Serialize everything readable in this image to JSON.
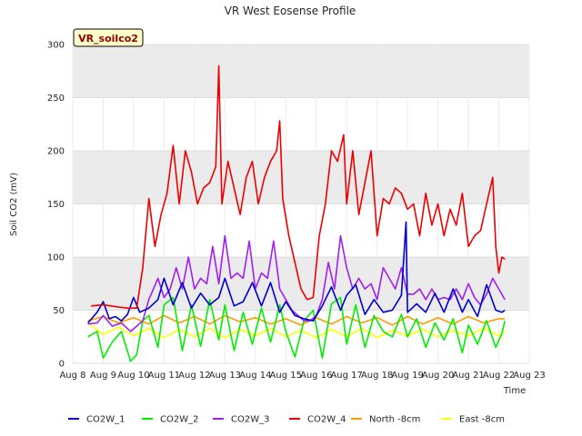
{
  "chart_data": {
    "type": "line",
    "title": "VR West Eosense Profile",
    "xlabel": "Time",
    "ylabel": "Soil CO2 (mV)",
    "site_label": "VR_soilco2",
    "x_tick_labels": [
      "Aug 8",
      "Aug 9",
      "Aug 10",
      "Aug 11",
      "Aug 12",
      "Aug 13",
      "Aug 14",
      "Aug 15",
      "Aug 16",
      "Aug 17",
      "Aug 18",
      "Aug 19",
      "Aug 20",
      "Aug 21",
      "Aug 22",
      "Aug 23"
    ],
    "xlim": [
      8,
      23
    ],
    "ylim": [
      0,
      300
    ],
    "y_ticks": [
      0,
      50,
      100,
      150,
      200,
      250,
      300
    ],
    "grid": true,
    "band_fill": "#ebebeb",
    "legend_position": "bottom",
    "x_unit": "day of August",
    "series": [
      {
        "name": "CO2W_1",
        "color": "#0000cc",
        "x": [
          8.5,
          8.8,
          9.0,
          9.2,
          9.4,
          9.6,
          9.8,
          10.0,
          10.2,
          10.5,
          10.8,
          11.0,
          11.3,
          11.6,
          11.9,
          12.2,
          12.5,
          12.8,
          13.0,
          13.3,
          13.6,
          13.9,
          14.2,
          14.5,
          14.8,
          15.0,
          15.3,
          15.6,
          15.9,
          16.2,
          16.5,
          16.8,
          17.0,
          17.3,
          17.6,
          17.9,
          18.2,
          18.5,
          18.8,
          18.95,
          19.0,
          19.3,
          19.6,
          19.9,
          20.2,
          20.5,
          20.8,
          21.0,
          21.3,
          21.6,
          21.9,
          22.1,
          22.2
        ],
        "y": [
          38,
          48,
          58,
          42,
          44,
          40,
          46,
          62,
          48,
          52,
          60,
          80,
          55,
          76,
          52,
          66,
          55,
          62,
          80,
          54,
          58,
          76,
          54,
          76,
          48,
          58,
          45,
          42,
          40,
          54,
          72,
          50,
          64,
          74,
          46,
          60,
          48,
          50,
          64,
          133,
          48,
          56,
          48,
          66,
          48,
          70,
          48,
          60,
          44,
          74,
          50,
          48,
          50
        ]
      },
      {
        "name": "CO2W_2",
        "color": "#00ee00",
        "x": [
          8.5,
          8.8,
          9.0,
          9.3,
          9.6,
          9.9,
          10.1,
          10.3,
          10.5,
          10.8,
          11.0,
          11.3,
          11.6,
          11.9,
          12.2,
          12.5,
          12.8,
          13.0,
          13.3,
          13.6,
          13.9,
          14.2,
          14.5,
          14.8,
          15.0,
          15.3,
          15.6,
          15.9,
          16.2,
          16.5,
          16.8,
          17.0,
          17.3,
          17.6,
          17.9,
          18.2,
          18.5,
          18.8,
          19.0,
          19.3,
          19.6,
          19.9,
          20.2,
          20.5,
          20.8,
          21.0,
          21.3,
          21.6,
          21.9,
          22.1,
          22.2
        ],
        "y": [
          25,
          30,
          5,
          20,
          30,
          2,
          8,
          40,
          45,
          15,
          55,
          62,
          12,
          55,
          16,
          60,
          22,
          55,
          12,
          48,
          18,
          52,
          20,
          55,
          30,
          6,
          40,
          50,
          5,
          56,
          62,
          18,
          55,
          15,
          45,
          30,
          25,
          46,
          25,
          42,
          15,
          38,
          22,
          42,
          10,
          36,
          18,
          40,
          15,
          28,
          40
        ]
      },
      {
        "name": "CO2W_3",
        "color": "#a020f0",
        "x": [
          8.5,
          8.8,
          9.0,
          9.3,
          9.6,
          9.9,
          10.1,
          10.3,
          10.5,
          10.8,
          11.0,
          11.2,
          11.4,
          11.6,
          11.8,
          12.0,
          12.2,
          12.4,
          12.6,
          12.8,
          13.0,
          13.2,
          13.4,
          13.6,
          13.8,
          14.0,
          14.2,
          14.4,
          14.6,
          14.8,
          15.0,
          15.2,
          15.4,
          15.6,
          15.8,
          16.0,
          16.2,
          16.4,
          16.6,
          16.8,
          17.0,
          17.2,
          17.4,
          17.6,
          17.8,
          18.0,
          18.2,
          18.4,
          18.6,
          18.8,
          19.0,
          19.2,
          19.4,
          19.6,
          19.8,
          20.0,
          20.2,
          20.4,
          20.6,
          20.8,
          21.0,
          21.2,
          21.4,
          21.6,
          21.8,
          22.0,
          22.2
        ],
        "y": [
          37,
          38,
          45,
          35,
          38,
          30,
          35,
          40,
          60,
          80,
          62,
          70,
          90,
          70,
          100,
          70,
          80,
          75,
          110,
          75,
          120,
          80,
          85,
          80,
          115,
          70,
          85,
          80,
          115,
          70,
          60,
          50,
          45,
          40,
          40,
          45,
          60,
          95,
          70,
          120,
          90,
          70,
          80,
          70,
          75,
          60,
          90,
          80,
          70,
          90,
          65,
          65,
          70,
          60,
          70,
          60,
          62,
          60,
          70,
          60,
          75,
          62,
          55,
          65,
          80,
          70,
          60
        ]
      },
      {
        "name": "CO2W_4",
        "color": "#ee0000",
        "x": [
          8.6,
          9.0,
          9.5,
          9.8,
          10.1,
          10.3,
          10.5,
          10.7,
          10.9,
          11.1,
          11.3,
          11.5,
          11.7,
          11.9,
          12.1,
          12.3,
          12.5,
          12.7,
          12.8,
          12.9,
          13.1,
          13.3,
          13.5,
          13.7,
          13.9,
          14.1,
          14.3,
          14.5,
          14.7,
          14.8,
          14.9,
          15.1,
          15.3,
          15.5,
          15.7,
          15.9,
          16.1,
          16.3,
          16.5,
          16.7,
          16.9,
          17.0,
          17.2,
          17.4,
          17.6,
          17.8,
          18.0,
          18.2,
          18.4,
          18.6,
          18.8,
          19.0,
          19.2,
          19.4,
          19.6,
          19.8,
          20.0,
          20.2,
          20.4,
          20.6,
          20.8,
          21.0,
          21.2,
          21.4,
          21.6,
          21.8,
          21.9,
          22.0,
          22.1,
          22.2
        ],
        "y": [
          54,
          55,
          53,
          52,
          52,
          90,
          155,
          110,
          140,
          160,
          205,
          150,
          200,
          180,
          150,
          165,
          170,
          185,
          280,
          150,
          190,
          165,
          140,
          175,
          190,
          150,
          175,
          190,
          200,
          228,
          155,
          120,
          95,
          70,
          60,
          62,
          120,
          150,
          200,
          190,
          215,
          150,
          200,
          140,
          170,
          200,
          120,
          155,
          150,
          165,
          160,
          145,
          150,
          120,
          160,
          130,
          150,
          120,
          145,
          130,
          160,
          110,
          120,
          125,
          150,
          175,
          110,
          85,
          100,
          98
        ]
      },
      {
        "name": "North -8cm",
        "color": "#ff9900",
        "x": [
          8.5,
          9.0,
          9.5,
          10.0,
          10.5,
          11.0,
          11.5,
          12.0,
          12.5,
          13.0,
          13.5,
          14.0,
          14.5,
          15.0,
          15.5,
          16.0,
          16.5,
          17.0,
          17.5,
          18.0,
          18.5,
          19.0,
          19.5,
          20.0,
          20.5,
          21.0,
          21.5,
          22.0,
          22.2
        ],
        "y": [
          40,
          44,
          38,
          43,
          37,
          45,
          38,
          44,
          37,
          45,
          39,
          43,
          37,
          42,
          36,
          43,
          37,
          44,
          38,
          43,
          36,
          44,
          37,
          43,
          37,
          44,
          38,
          42,
          42
        ]
      },
      {
        "name": "East -8cm",
        "color": "#ffff00",
        "x": [
          8.5,
          9.0,
          9.5,
          10.0,
          10.5,
          11.0,
          11.5,
          12.0,
          12.5,
          13.0,
          13.5,
          14.0,
          14.5,
          15.0,
          15.5,
          16.0,
          16.5,
          17.0,
          17.5,
          18.0,
          18.5,
          19.0,
          19.5,
          20.0,
          20.5,
          21.0,
          21.5,
          22.0,
          22.2
        ],
        "y": [
          38,
          27,
          34,
          26,
          33,
          24,
          32,
          25,
          33,
          24,
          32,
          26,
          33,
          25,
          31,
          24,
          32,
          25,
          33,
          24,
          31,
          26,
          32,
          25,
          31,
          26,
          33,
          26,
          30
        ]
      }
    ]
  }
}
